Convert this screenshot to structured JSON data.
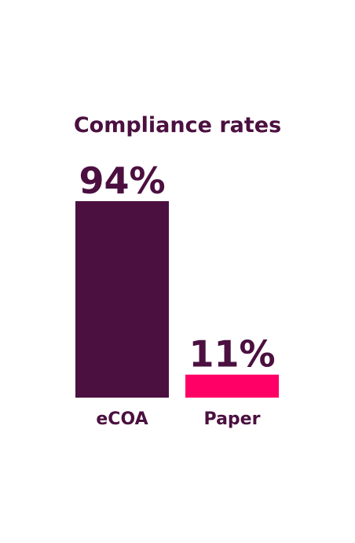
{
  "chart_data": {
    "type": "bar",
    "title": "Compliance rates",
    "xlabel": "",
    "ylabel": "",
    "categories": [
      "eCOA",
      "Paper"
    ],
    "values": [
      94,
      11
    ],
    "value_labels": [
      "94%",
      "11%"
    ],
    "ylim": [
      0,
      100
    ],
    "grid": false,
    "legend": "none",
    "colors": {
      "title": "#4b1040",
      "bars": [
        "#4b1040",
        "#ff0066"
      ],
      "labels": "#4b1040"
    }
  }
}
